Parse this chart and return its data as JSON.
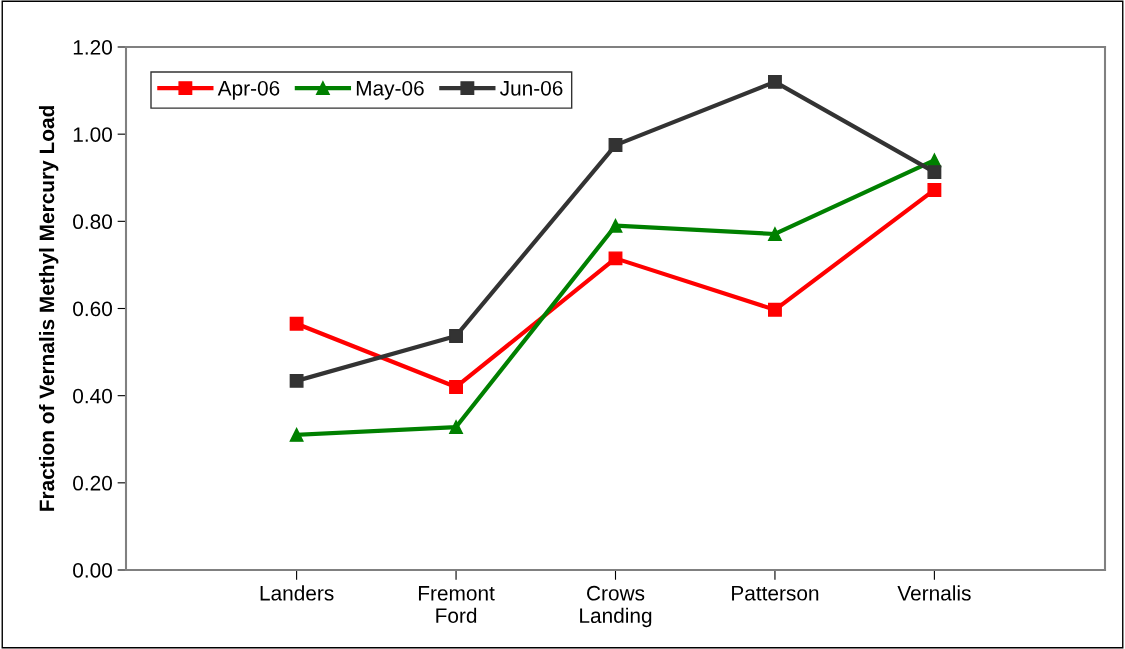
{
  "chart_data": {
    "type": "line",
    "ylabel": "Fraction of Vernalis Methyl Mercury Load",
    "categories": [
      "Landers",
      "Fremont\nFord",
      "Crows\nLanding",
      "Patterson",
      "Vernalis"
    ],
    "series": [
      {
        "name": "Apr-06",
        "color": "#ff0000",
        "marker": "square",
        "values": [
          0.565,
          0.42,
          0.715,
          0.597,
          0.872
        ]
      },
      {
        "name": "May-06",
        "color": "#008000",
        "marker": "triangle",
        "values": [
          0.31,
          0.328,
          0.79,
          0.771,
          0.94
        ]
      },
      {
        "name": "Jun-06",
        "color": "#333333",
        "marker": "square",
        "values": [
          0.434,
          0.537,
          0.975,
          1.12,
          0.913
        ]
      }
    ],
    "ylim": [
      0,
      1.2
    ],
    "yticks": [
      {
        "value": 0,
        "label": "0.00"
      },
      {
        "value": 0.2,
        "label": "0.20"
      },
      {
        "value": 0.4,
        "label": "0.40"
      },
      {
        "value": 0.6,
        "label": "0.60"
      },
      {
        "value": 0.8,
        "label": "0.80"
      },
      {
        "value": 1.0,
        "label": "1.00"
      },
      {
        "value": 1.2,
        "label": "1.20"
      }
    ],
    "grid": false,
    "legend": "top left",
    "line_style": "solid"
  }
}
